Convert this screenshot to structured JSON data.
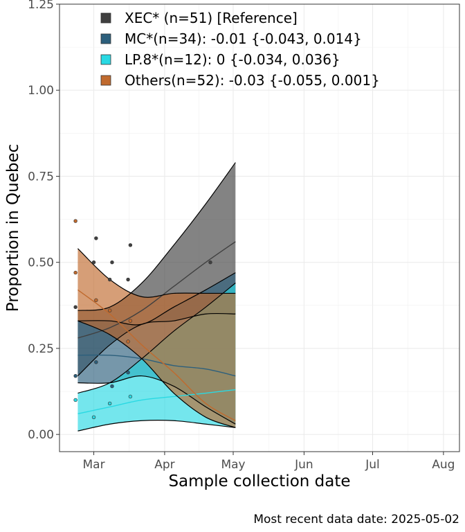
{
  "chart_data": {
    "type": "line",
    "title": "",
    "xlabel": "Sample collection date",
    "ylabel": "Proportion in Quebec",
    "caption": "Most recent data date: 2025-05-02",
    "x_range": [
      "2025-02-14",
      "2025-08-08"
    ],
    "ylim": [
      -0.05,
      1.25
    ],
    "x_ticks": [
      {
        "label": "Mar",
        "date": "2025-03-01"
      },
      {
        "label": "Apr",
        "date": "2025-04-01"
      },
      {
        "label": "May",
        "date": "2025-05-01"
      },
      {
        "label": "Jun",
        "date": "2025-06-01"
      },
      {
        "label": "Jul",
        "date": "2025-07-01"
      },
      {
        "label": "Aug",
        "date": "2025-08-01"
      }
    ],
    "y_ticks": [
      {
        "label": "0.00",
        "value": 0
      },
      {
        "label": "0.25",
        "value": 0.25
      },
      {
        "label": "0.50",
        "value": 0.5
      },
      {
        "label": "0.75",
        "value": 0.75
      },
      {
        "label": "1.00",
        "value": 1.0
      },
      {
        "label": "1.25",
        "value": 1.25
      }
    ],
    "grid": true,
    "legend_position": "top-left",
    "series": [
      {
        "name": "XEC* (n=51)  [Reference]",
        "color": "#404040",
        "x": [
          "2025-02-22",
          "2025-03-08",
          "2025-03-22",
          "2025-04-05",
          "2025-04-19",
          "2025-05-02"
        ],
        "values": [
          0.28,
          0.31,
          0.36,
          0.43,
          0.5,
          0.56
        ],
        "lower": [
          0.17,
          0.26,
          0.32,
          0.33,
          0.35,
          0.35
        ],
        "upper": [
          0.36,
          0.37,
          0.44,
          0.55,
          0.67,
          0.79
        ]
      },
      {
        "name": "MC*(n=34): -0.01 {-0.043, 0.014}",
        "color": "#2c5f7c",
        "x": [
          "2025-02-22",
          "2025-03-08",
          "2025-03-22",
          "2025-04-05",
          "2025-04-19",
          "2025-05-02"
        ],
        "values": [
          0.23,
          0.23,
          0.22,
          0.2,
          0.19,
          0.17
        ],
        "lower": [
          0.15,
          0.15,
          0.17,
          0.14,
          0.08,
          0.03
        ],
        "upper": [
          0.33,
          0.33,
          0.32,
          0.37,
          0.42,
          0.47
        ]
      },
      {
        "name": "LP.8*(n=12): 0 {-0.034, 0.036}",
        "color": "#29d9e3",
        "x": [
          "2025-02-22",
          "2025-03-08",
          "2025-03-22",
          "2025-04-05",
          "2025-04-19",
          "2025-05-02"
        ],
        "values": [
          0.06,
          0.08,
          0.1,
          0.11,
          0.12,
          0.13
        ],
        "lower": [
          0.01,
          0.03,
          0.04,
          0.04,
          0.03,
          0.02
        ],
        "upper": [
          0.12,
          0.15,
          0.22,
          0.3,
          0.37,
          0.44
        ]
      },
      {
        "name": "Others(n=52): -0.03 {-0.055, 0.001}",
        "color": "#c06a2e",
        "x": [
          "2025-02-22",
          "2025-03-08",
          "2025-03-22",
          "2025-04-05",
          "2025-04-19",
          "2025-05-02"
        ],
        "values": [
          0.42,
          0.35,
          0.26,
          0.18,
          0.09,
          0.04
        ],
        "lower": [
          0.33,
          0.29,
          0.22,
          0.12,
          0.05,
          0.02
        ],
        "upper": [
          0.54,
          0.45,
          0.4,
          0.41,
          0.41,
          0.41
        ]
      }
    ],
    "observations": [
      {
        "x": "2025-02-21",
        "y": 0.62,
        "series": "Others(n=52): -0.03 {-0.055, 0.001}"
      },
      {
        "x": "2025-02-21",
        "y": 0.47,
        "series": "Others(n=52): -0.03 {-0.055, 0.001}"
      },
      {
        "x": "2025-02-21",
        "y": 0.37,
        "series": "XEC* (n=51)  [Reference]"
      },
      {
        "x": "2025-02-21",
        "y": 0.17,
        "series": "MC*(n=34): -0.01 {-0.043, 0.014}"
      },
      {
        "x": "2025-02-21",
        "y": 0.1,
        "series": "LP.8*(n=12): 0 {-0.034, 0.036}"
      },
      {
        "x": "2025-03-01",
        "y": 0.5,
        "series": "XEC* (n=51)  [Reference]"
      },
      {
        "x": "2025-03-02",
        "y": 0.57,
        "series": "XEC* (n=51)  [Reference]"
      },
      {
        "x": "2025-03-02",
        "y": 0.39,
        "series": "Others(n=52): -0.03 {-0.055, 0.001}"
      },
      {
        "x": "2025-03-02",
        "y": 0.21,
        "series": "MC*(n=34): -0.01 {-0.043, 0.014}"
      },
      {
        "x": "2025-03-01",
        "y": 0.05,
        "series": "LP.8*(n=12): 0 {-0.034, 0.036}"
      },
      {
        "x": "2025-03-08",
        "y": 0.45,
        "series": "XEC* (n=51)  [Reference]"
      },
      {
        "x": "2025-03-09",
        "y": 0.5,
        "series": "XEC* (n=51)  [Reference]"
      },
      {
        "x": "2025-03-08",
        "y": 0.36,
        "series": "Others(n=52): -0.03 {-0.055, 0.001}"
      },
      {
        "x": "2025-03-09",
        "y": 0.14,
        "series": "MC*(n=34): -0.01 {-0.043, 0.014}"
      },
      {
        "x": "2025-03-08",
        "y": 0.09,
        "series": "LP.8*(n=12): 0 {-0.034, 0.036}"
      },
      {
        "x": "2025-03-17",
        "y": 0.55,
        "series": "XEC* (n=51)  [Reference]"
      },
      {
        "x": "2025-03-16",
        "y": 0.45,
        "series": "XEC* (n=51)  [Reference]"
      },
      {
        "x": "2025-03-17",
        "y": 0.33,
        "series": "Others(n=52): -0.03 {-0.055, 0.001}"
      },
      {
        "x": "2025-03-16",
        "y": 0.27,
        "series": "Others(n=52): -0.03 {-0.055, 0.001}"
      },
      {
        "x": "2025-03-16",
        "y": 0.18,
        "series": "MC*(n=34): -0.01 {-0.043, 0.014}"
      },
      {
        "x": "2025-03-17",
        "y": 0.11,
        "series": "LP.8*(n=12): 0 {-0.034, 0.036}"
      },
      {
        "x": "2025-04-21",
        "y": 0.5,
        "series": "XEC* (n=51)  [Reference]"
      }
    ]
  }
}
